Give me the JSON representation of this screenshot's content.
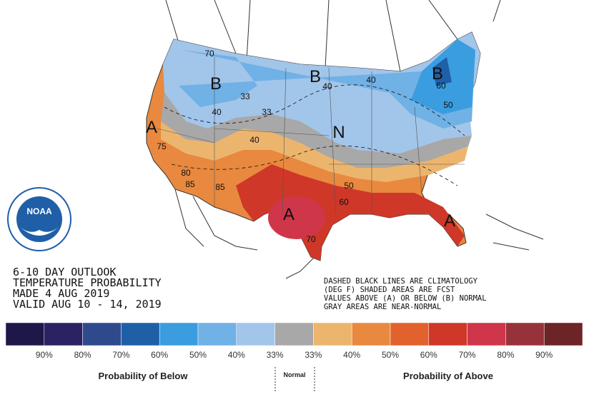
{
  "outlook": {
    "lines": [
      "6-10 DAY OUTLOOK",
      "TEMPERATURE PROBABILITY",
      "MADE  4 AUG 2019",
      "VALID  AUG 10 - 14, 2019"
    ]
  },
  "note": {
    "lines": [
      "DASHED BLACK LINES ARE CLIMATOLOGY",
      "(DEG F) SHADED AREAS ARE FCST",
      "VALUES ABOVE (A) OR BELOW (B) NORMAL",
      "GRAY AREAS ARE NEAR-NORMAL"
    ]
  },
  "logo": "NOAA",
  "map_labels": {
    "letters": [
      "B",
      "B",
      "B",
      "A",
      "N",
      "A",
      "A"
    ],
    "contours": [
      33,
      33,
      40,
      40,
      40,
      40,
      50,
      50,
      60,
      60,
      70,
      70,
      75,
      80,
      85,
      85
    ]
  },
  "legend": {
    "colors": [
      "#1e1848",
      "#2a2263",
      "#2f4a8c",
      "#1f5fa8",
      "#3a9ddf",
      "#70b1e6",
      "#a2c5ea",
      "#a8a8a8",
      "#ecb56e",
      "#e8893f",
      "#e2622d",
      "#cf3728",
      "#d0364a",
      "#98323a",
      "#6c2427"
    ],
    "labels": [
      "90%",
      "80%",
      "70%",
      "60%",
      "50%",
      "40%",
      "33%",
      "33%",
      "40%",
      "50%",
      "60%",
      "70%",
      "80%",
      "90%"
    ],
    "below": "Probability of Below",
    "normal": "Normal",
    "above": "Probability of Above"
  }
}
